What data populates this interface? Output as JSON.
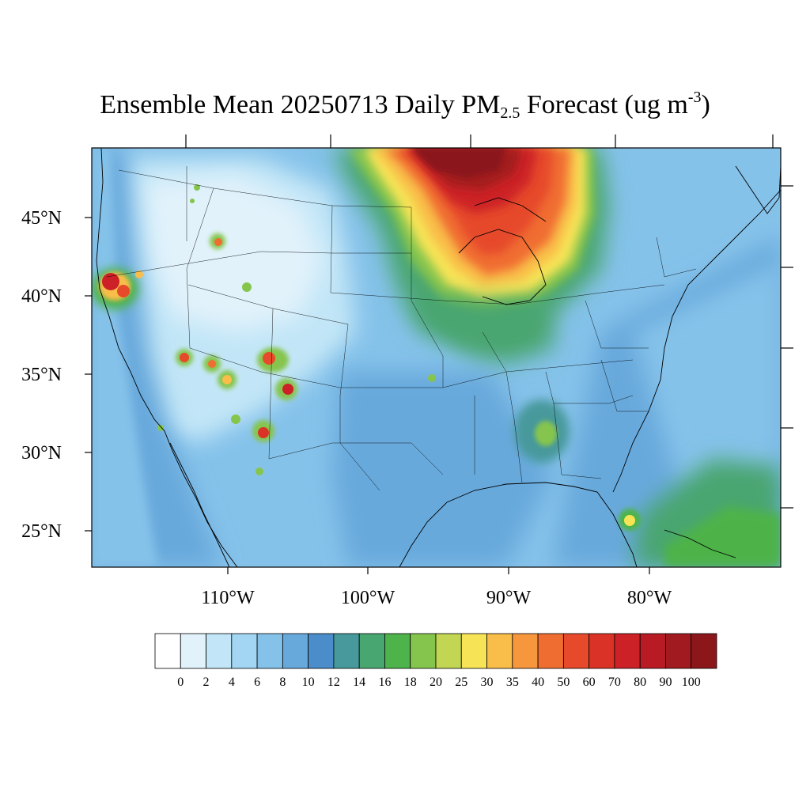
{
  "title": {
    "prefix": "Ensemble Mean 20250713 Daily PM",
    "subscript": "2.5",
    "middle": " Forecast (ug m",
    "superscript": "-3",
    "suffix": ")"
  },
  "map": {
    "lat_labels": [
      "45°N",
      "40°N",
      "35°N",
      "30°N",
      "25°N"
    ],
    "lon_labels": [
      "110°W",
      "100°W",
      "90°W",
      "80°W"
    ]
  },
  "colorbar": {
    "labels": [
      "0",
      "2",
      "4",
      "6",
      "8",
      "10",
      "12",
      "14",
      "16",
      "18",
      "20",
      "25",
      "30",
      "35",
      "40",
      "50",
      "60",
      "70",
      "80",
      "90",
      "100"
    ],
    "colors": [
      "#ffffff",
      "#e1f2fb",
      "#c2e6f7",
      "#a2d6f3",
      "#85c2ea",
      "#68a9dc",
      "#4b8cca",
      "#47999b",
      "#48a670",
      "#4db34a",
      "#86c54d",
      "#c3d653",
      "#f7e456",
      "#f9be4a",
      "#f6963d",
      "#f06d31",
      "#e64a2a",
      "#da3226",
      "#cc2127",
      "#b81b23",
      "#a11a1f",
      "#8b171b"
    ]
  }
}
